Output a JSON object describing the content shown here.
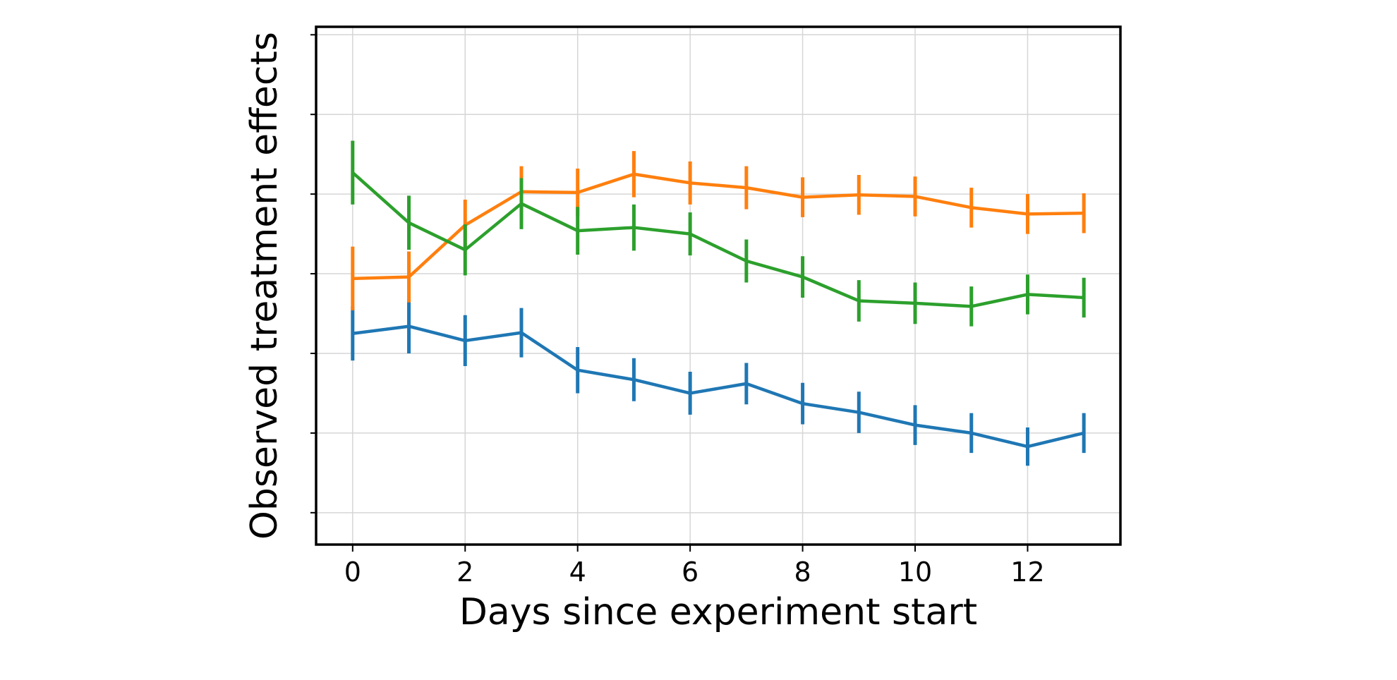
{
  "chart_data": {
    "type": "line",
    "title": "",
    "xlabel": "Days since experiment start",
    "ylabel": "Observed treatment effects",
    "xlim": [
      -0.65,
      13.65
    ],
    "ylim": [
      -0.4,
      6.1
    ],
    "x_ticks": [
      0,
      2,
      4,
      6,
      8,
      10,
      12
    ],
    "x_tick_labels": [
      "0",
      "2",
      "4",
      "6",
      "8",
      "10",
      "12"
    ],
    "y_ticks": [
      0,
      1,
      2,
      3,
      4,
      5,
      6
    ],
    "y_tick_labels_visible": false,
    "grid": true,
    "legend": "none",
    "x": [
      0,
      1,
      2,
      3,
      4,
      5,
      6,
      7,
      8,
      9,
      10,
      11,
      12,
      13
    ],
    "series": [
      {
        "color": "#1f77b4",
        "values": [
          2.25,
          2.34,
          2.16,
          2.26,
          1.79,
          1.67,
          1.5,
          1.62,
          1.37,
          1.26,
          1.1,
          1.0,
          0.83,
          1.0
        ],
        "errors": [
          0.34,
          0.34,
          0.32,
          0.31,
          0.29,
          0.27,
          0.27,
          0.26,
          0.26,
          0.26,
          0.25,
          0.25,
          0.24,
          0.25
        ]
      },
      {
        "color": "#ff7f0e",
        "values": [
          2.94,
          2.96,
          3.61,
          4.03,
          4.02,
          4.25,
          4.14,
          4.08,
          3.96,
          3.99,
          3.97,
          3.83,
          3.75,
          3.76
        ],
        "errors": [
          0.4,
          0.32,
          0.32,
          0.32,
          0.3,
          0.29,
          0.27,
          0.27,
          0.25,
          0.25,
          0.25,
          0.25,
          0.25,
          0.25
        ]
      },
      {
        "color": "#2ca02c",
        "values": [
          4.27,
          3.64,
          3.3,
          3.88,
          3.54,
          3.58,
          3.5,
          3.16,
          2.96,
          2.66,
          2.63,
          2.59,
          2.74,
          2.7
        ],
        "errors": [
          0.4,
          0.34,
          0.32,
          0.32,
          0.3,
          0.29,
          0.27,
          0.27,
          0.26,
          0.26,
          0.26,
          0.25,
          0.25,
          0.25
        ]
      }
    ]
  }
}
